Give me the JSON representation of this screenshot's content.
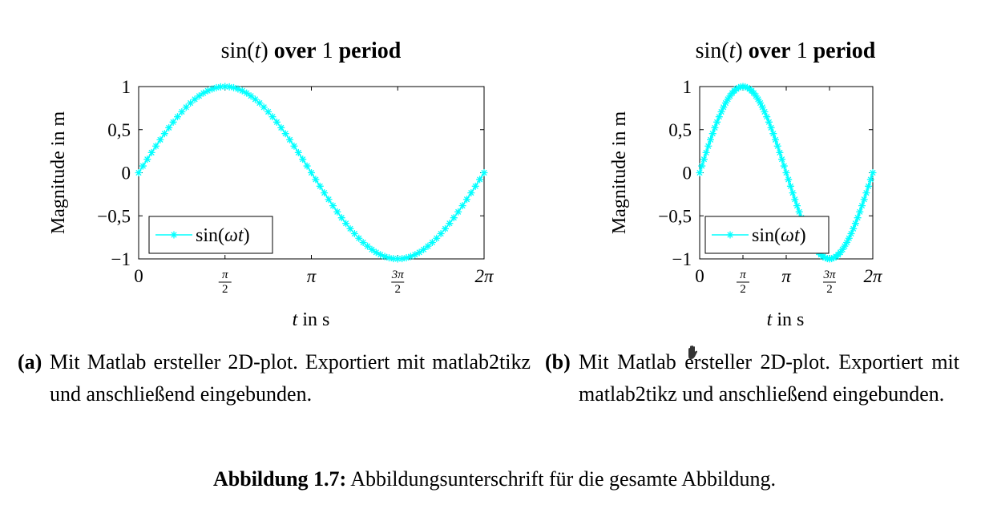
{
  "chart_data": [
    {
      "type": "line",
      "title": "sin(t) over 1 period",
      "title_parts": {
        "fn": "sin(",
        "var": "t",
        "mid": ") ",
        "word1": "over",
        "num": " 1 ",
        "word2": "period"
      },
      "xlabel": "t in s",
      "ylabel": "Magnitude in m",
      "xlim": [
        0,
        6.2832
      ],
      "ylim": [
        -1,
        1
      ],
      "xticks": [
        "0",
        "π/2",
        "π",
        "3π/2",
        "2π"
      ],
      "yticks": [
        "1",
        "0,5",
        "0",
        "−0,5",
        "−1"
      ],
      "legend": "top-left inside, lower-left corner",
      "series": [
        {
          "name": "sin(ωt)",
          "color": "#00ffff",
          "marker": "asterisk",
          "omega": 1,
          "points": 81,
          "x": [
            0,
            0.7854,
            1.5708,
            2.3562,
            3.1416,
            3.927,
            4.7124,
            5.4978,
            6.2832
          ],
          "y": [
            0,
            0.707,
            1,
            0.707,
            0,
            -0.707,
            -1,
            -0.707,
            0
          ]
        }
      ]
    },
    {
      "type": "line",
      "title": "sin(t) over 1 period",
      "xlabel": "t in s",
      "ylabel": "Magnitude in m",
      "xlim": [
        0,
        6.2832
      ],
      "ylim": [
        -1,
        1
      ],
      "xticks": [
        "0",
        "π/2",
        "π",
        "3π/2",
        "2π"
      ],
      "yticks": [
        "1",
        "0,5",
        "0",
        "−0,5",
        "−1"
      ],
      "legend": "lower-left inside",
      "series": [
        {
          "name": "sin(ωt)",
          "color": "#00ffff",
          "marker": "asterisk",
          "omega": 1,
          "points": 81,
          "x": [
            0,
            0.7854,
            1.5708,
            2.3562,
            3.1416,
            3.927,
            4.7124,
            5.4978,
            6.2832
          ],
          "y": [
            0,
            0.707,
            1,
            0.707,
            0,
            -0.707,
            -1,
            -0.707,
            0
          ]
        }
      ]
    }
  ],
  "captions": {
    "a": {
      "label": "(a)",
      "text": "Mit Matlab ersteller 2D-plot. Exportiert mit matlab2tikz und anschließend eingebunden."
    },
    "b": {
      "label": "(b)",
      "text": "Mit Matlab ersteller 2D-plot. Exportiert mit matlab2tikz und anschließend eingebunden."
    }
  },
  "figure_caption": {
    "label": "Abbildung 1.7:",
    "text": " Abbildungsunterschrift für die gesamte Abbildung."
  },
  "cursor": {
    "icon": "hand-cursor-icon"
  }
}
